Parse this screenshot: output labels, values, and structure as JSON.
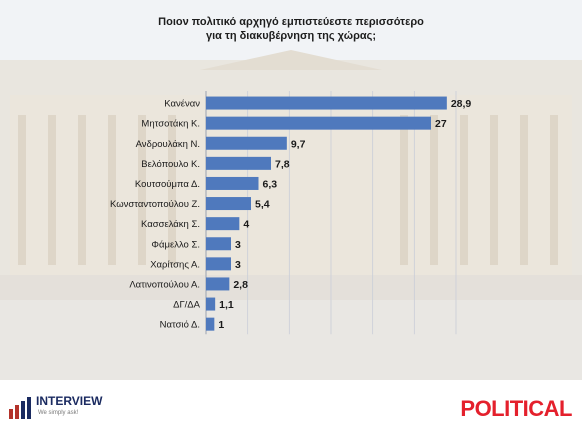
{
  "title_lines": [
    "Ποιον πολιτικό αρχηγό εμπιστεύεστε περισσότερο",
    "για τη διακυβέρνηση της χώρας;"
  ],
  "chart_data": {
    "type": "bar",
    "orientation": "horizontal",
    "categories": [
      "Κανέναν",
      "Μητσοτάκη Κ.",
      "Ανδρουλάκη Ν.",
      "Βελόπουλο Κ.",
      "Κουτσούμπα Δ.",
      "Κωνσταντοπούλου Ζ.",
      "Κασσελάκη Σ.",
      "Φάμελλο Σ.",
      "Χαρίτσης Α.",
      "Λατινοπούλου Α.",
      "ΔΓ/ΔΑ",
      "Νατσιό Δ."
    ],
    "values": [
      28.9,
      27,
      9.7,
      7.8,
      6.3,
      5.4,
      4,
      3,
      3,
      2.8,
      1.1,
      1
    ],
    "value_labels": [
      "28,9",
      "27",
      "9,7",
      "7,8",
      "6,3",
      "5,4",
      "4",
      "3",
      "3",
      "2,8",
      "1,1",
      "1"
    ],
    "xlim": [
      0,
      30
    ],
    "grid": true,
    "bar_color": "#4f79bd"
  },
  "footer": {
    "interview_name": "INTERVIEW",
    "interview_tagline": "We simply ask!",
    "political_brand": "POLITICAL"
  },
  "colors": {
    "bar": "#4f79bd",
    "political": "#e4202c",
    "interview": "#1a2a60"
  }
}
